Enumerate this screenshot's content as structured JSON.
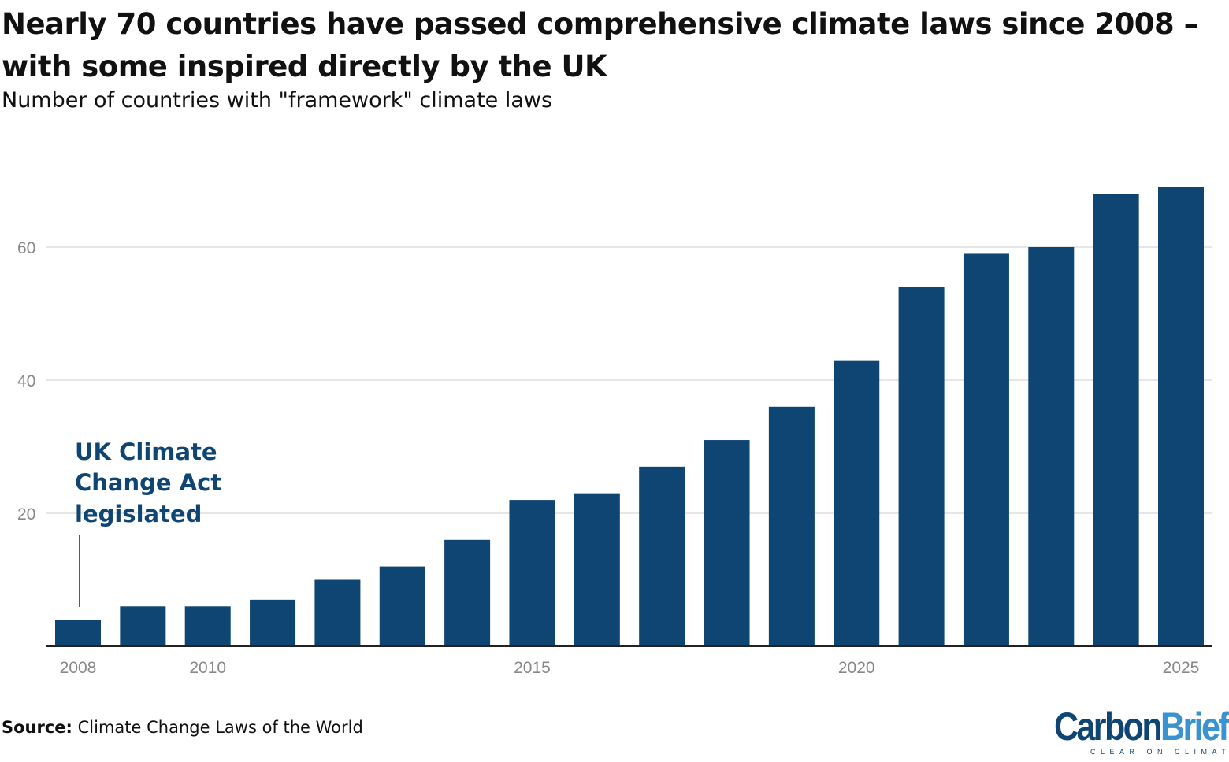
{
  "title": "Nearly 70 countries have passed comprehensive climate laws since 2008 – with some inspired directly by the UK",
  "subtitle": "Number of countries with \"framework\" climate laws",
  "source_label": "Source:",
  "source_text": "Climate Change Laws of the World",
  "logo": {
    "part1": "Carbon",
    "part2": "Brief",
    "tagline": "CLEAR ON CLIMATE",
    "color1": "#0e4572",
    "color2": "#3a93d0"
  },
  "chart_data": {
    "type": "bar",
    "title": "Nearly 70 countries have passed comprehensive climate laws since 2008 – with some inspired directly by the UK",
    "subtitle": "Number of countries with \"framework\" climate laws",
    "categories": [
      2008,
      2009,
      2010,
      2011,
      2012,
      2013,
      2014,
      2015,
      2016,
      2017,
      2018,
      2019,
      2020,
      2021,
      2022,
      2023,
      2024,
      2025
    ],
    "values": [
      4,
      6,
      6,
      7,
      10,
      12,
      16,
      22,
      23,
      27,
      31,
      36,
      43,
      54,
      59,
      60,
      68,
      69
    ],
    "x_tick_labels": [
      "2008",
      "2010",
      "2015",
      "2020",
      "2025"
    ],
    "y_ticks": [
      20,
      40,
      60
    ],
    "ylim": [
      0,
      72
    ],
    "grid": true,
    "bar_color": "#0e4572",
    "annotation": {
      "text": [
        "UK Climate",
        "Change Act",
        "legislated"
      ],
      "category": 2008
    }
  }
}
